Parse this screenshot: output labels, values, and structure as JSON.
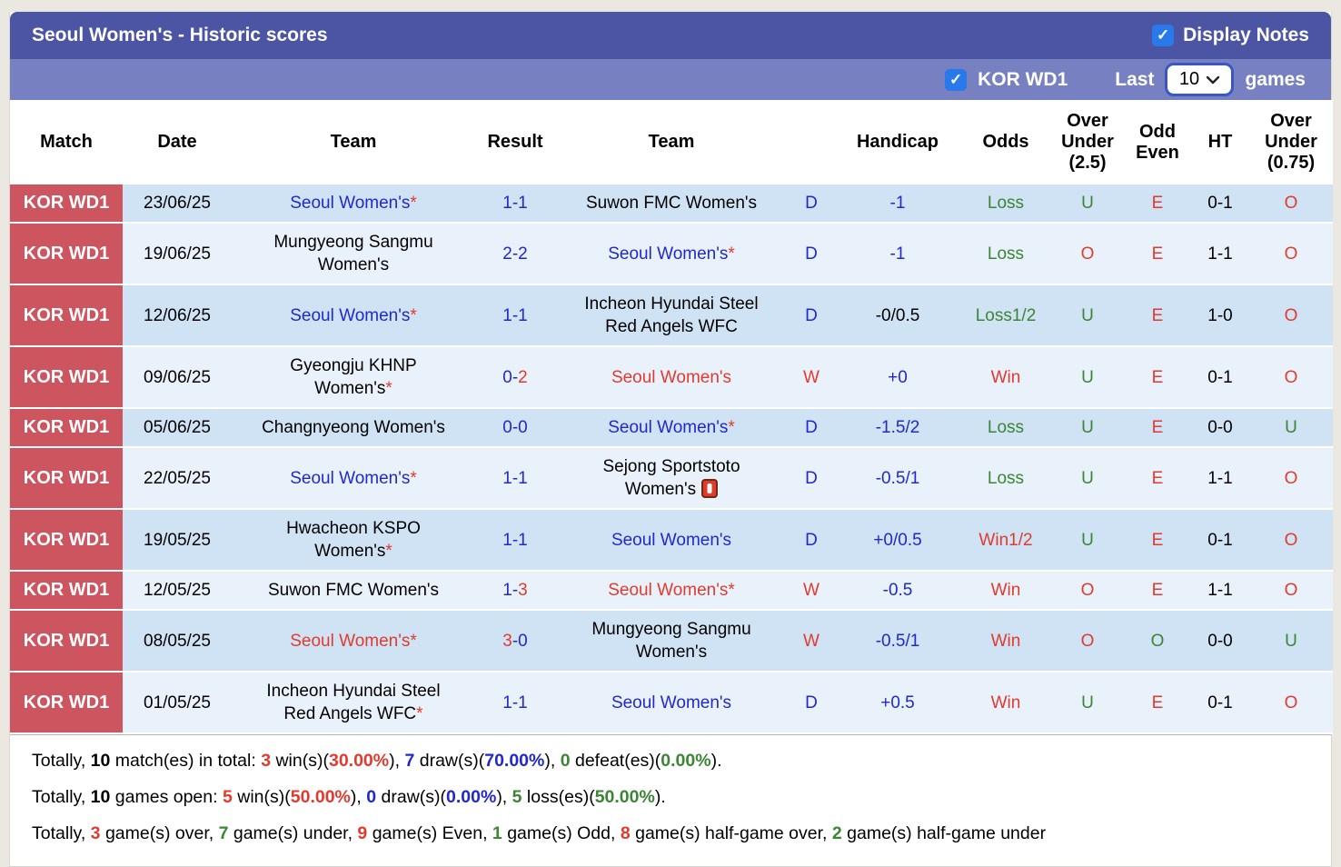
{
  "title_bar": {
    "title": "Seoul Women's - Historic scores",
    "display_notes_label": "Display Notes",
    "display_notes_checked": true
  },
  "filter_bar": {
    "league_label": "KOR WD1",
    "league_checked": true,
    "last_label": "Last",
    "games_label": "games",
    "selected_count": "10"
  },
  "icons": {
    "checkmark": "✓"
  },
  "colors": {
    "title_bar": "#4c55a4",
    "filter_bar": "#7780c0",
    "badge_red": "#cd5560",
    "row_dark": "#cfe3f4",
    "row_light": "#e9f2fa",
    "text_blue": "#2128cc",
    "text_red": "#e23a2e",
    "text_green": "#3c8534",
    "checkbox_blue": "#2979ea"
  },
  "table": {
    "headers": {
      "match": "Match",
      "date": "Date",
      "team_home": "Team",
      "result": "Result",
      "team_away": "Team",
      "outcome": "",
      "handicap": "Handicap",
      "odds": "Odds",
      "over_under_25": "Over Under (2.5)",
      "odd_even": "Odd Even",
      "ht": "HT",
      "over_under_075": "Over Under (0.75)"
    },
    "rows": [
      {
        "league": "KOR WD1",
        "date": "23/06/25",
        "home": {
          "name": "Seoul Women's",
          "color": "blue",
          "star": true
        },
        "result": [
          {
            "t": "1-1",
            "c": "blue"
          }
        ],
        "away": {
          "name": "Suwon FMC Women's",
          "color": "black",
          "star": false
        },
        "outcome": {
          "t": "D",
          "c": "blue"
        },
        "handicap": {
          "t": "-1",
          "c": "blue"
        },
        "odds": {
          "t": "Loss",
          "c": "green"
        },
        "ou25": {
          "t": "U",
          "c": "green"
        },
        "odd_even": {
          "t": "E",
          "c": "red"
        },
        "ht": "0-1",
        "ou075": {
          "t": "O",
          "c": "red"
        }
      },
      {
        "league": "KOR WD1",
        "date": "19/06/25",
        "home": {
          "name": "Mungyeong Sangmu\nWomen's",
          "color": "black",
          "star": false
        },
        "result": [
          {
            "t": "2-2",
            "c": "blue"
          }
        ],
        "away": {
          "name": "Seoul Women's",
          "color": "blue",
          "star": true
        },
        "outcome": {
          "t": "D",
          "c": "blue"
        },
        "handicap": {
          "t": "-1",
          "c": "blue"
        },
        "odds": {
          "t": "Loss",
          "c": "green"
        },
        "ou25": {
          "t": "O",
          "c": "red"
        },
        "odd_even": {
          "t": "E",
          "c": "red"
        },
        "ht": "1-1",
        "ou075": {
          "t": "O",
          "c": "red"
        }
      },
      {
        "league": "KOR WD1",
        "date": "12/06/25",
        "home": {
          "name": "Seoul Women's",
          "color": "blue",
          "star": true
        },
        "result": [
          {
            "t": "1-1",
            "c": "blue"
          }
        ],
        "away": {
          "name": "Incheon Hyundai Steel\nRed Angels WFC",
          "color": "black",
          "star": false
        },
        "outcome": {
          "t": "D",
          "c": "blue"
        },
        "handicap": {
          "t": "-0/0.5",
          "c": "black"
        },
        "odds": {
          "t": "Loss1/2",
          "c": "green"
        },
        "ou25": {
          "t": "U",
          "c": "green"
        },
        "odd_even": {
          "t": "E",
          "c": "red"
        },
        "ht": "1-0",
        "ou075": {
          "t": "O",
          "c": "red"
        }
      },
      {
        "league": "KOR WD1",
        "date": "09/06/25",
        "home": {
          "name": "Gyeongju KHNP\nWomen's",
          "color": "black",
          "star": true
        },
        "result": [
          {
            "t": "0-",
            "c": "blue"
          },
          {
            "t": "2",
            "c": "red"
          }
        ],
        "away": {
          "name": "Seoul Women's",
          "color": "red",
          "star": false
        },
        "outcome": {
          "t": "W",
          "c": "red"
        },
        "handicap": {
          "t": "+0",
          "c": "blue"
        },
        "odds": {
          "t": "Win",
          "c": "red"
        },
        "ou25": {
          "t": "U",
          "c": "green"
        },
        "odd_even": {
          "t": "E",
          "c": "red"
        },
        "ht": "0-1",
        "ou075": {
          "t": "O",
          "c": "red"
        }
      },
      {
        "league": "KOR WD1",
        "date": "05/06/25",
        "home": {
          "name": "Changnyeong Women's",
          "color": "black",
          "star": false
        },
        "result": [
          {
            "t": "0-0",
            "c": "blue"
          }
        ],
        "away": {
          "name": "Seoul Women's",
          "color": "blue",
          "star": true
        },
        "outcome": {
          "t": "D",
          "c": "blue"
        },
        "handicap": {
          "t": "-1.5/2",
          "c": "blue"
        },
        "odds": {
          "t": "Loss",
          "c": "green"
        },
        "ou25": {
          "t": "U",
          "c": "green"
        },
        "odd_even": {
          "t": "E",
          "c": "red"
        },
        "ht": "0-0",
        "ou075": {
          "t": "U",
          "c": "green"
        }
      },
      {
        "league": "KOR WD1",
        "date": "22/05/25",
        "home": {
          "name": "Seoul Women's",
          "color": "blue",
          "star": true
        },
        "result": [
          {
            "t": "1-1",
            "c": "blue"
          }
        ],
        "away": {
          "name": "Sejong Sportstoto\nWomen's",
          "color": "black",
          "star": false,
          "note": true
        },
        "outcome": {
          "t": "D",
          "c": "blue"
        },
        "handicap": {
          "t": "-0.5/1",
          "c": "blue"
        },
        "odds": {
          "t": "Loss",
          "c": "green"
        },
        "ou25": {
          "t": "U",
          "c": "green"
        },
        "odd_even": {
          "t": "E",
          "c": "red"
        },
        "ht": "1-1",
        "ou075": {
          "t": "O",
          "c": "red"
        }
      },
      {
        "league": "KOR WD1",
        "date": "19/05/25",
        "home": {
          "name": "Hwacheon KSPO\nWomen's",
          "color": "black",
          "star": true
        },
        "result": [
          {
            "t": "1-1",
            "c": "blue"
          }
        ],
        "away": {
          "name": "Seoul Women's",
          "color": "blue",
          "star": false
        },
        "outcome": {
          "t": "D",
          "c": "blue"
        },
        "handicap": {
          "t": "+0/0.5",
          "c": "blue"
        },
        "odds": {
          "t": "Win1/2",
          "c": "red"
        },
        "ou25": {
          "t": "U",
          "c": "green"
        },
        "odd_even": {
          "t": "E",
          "c": "red"
        },
        "ht": "0-1",
        "ou075": {
          "t": "O",
          "c": "red"
        }
      },
      {
        "league": "KOR WD1",
        "date": "12/05/25",
        "home": {
          "name": "Suwon FMC Women's",
          "color": "black",
          "star": false
        },
        "result": [
          {
            "t": "1-",
            "c": "blue"
          },
          {
            "t": "3",
            "c": "red"
          }
        ],
        "away": {
          "name": "Seoul Women's",
          "color": "red",
          "star": true
        },
        "outcome": {
          "t": "W",
          "c": "red"
        },
        "handicap": {
          "t": "-0.5",
          "c": "blue"
        },
        "odds": {
          "t": "Win",
          "c": "red"
        },
        "ou25": {
          "t": "O",
          "c": "red"
        },
        "odd_even": {
          "t": "E",
          "c": "red"
        },
        "ht": "1-1",
        "ou075": {
          "t": "O",
          "c": "red"
        }
      },
      {
        "league": "KOR WD1",
        "date": "08/05/25",
        "home": {
          "name": "Seoul Women's",
          "color": "red",
          "star": true
        },
        "result": [
          {
            "t": "3",
            "c": "red"
          },
          {
            "t": "-0",
            "c": "blue"
          }
        ],
        "away": {
          "name": "Mungyeong Sangmu\nWomen's",
          "color": "black",
          "star": false
        },
        "outcome": {
          "t": "W",
          "c": "red"
        },
        "handicap": {
          "t": "-0.5/1",
          "c": "blue"
        },
        "odds": {
          "t": "Win",
          "c": "red"
        },
        "ou25": {
          "t": "O",
          "c": "red"
        },
        "odd_even": {
          "t": "O",
          "c": "green"
        },
        "ht": "0-0",
        "ou075": {
          "t": "U",
          "c": "green"
        }
      },
      {
        "league": "KOR WD1",
        "date": "01/05/25",
        "home": {
          "name": "Incheon Hyundai Steel\nRed Angels WFC",
          "color": "black",
          "star": true
        },
        "result": [
          {
            "t": "1-1",
            "c": "blue"
          }
        ],
        "away": {
          "name": "Seoul Women's",
          "color": "blue",
          "star": false
        },
        "outcome": {
          "t": "D",
          "c": "blue"
        },
        "handicap": {
          "t": "+0.5",
          "c": "blue"
        },
        "odds": {
          "t": "Win",
          "c": "red"
        },
        "ou25": {
          "t": "U",
          "c": "green"
        },
        "odd_even": {
          "t": "E",
          "c": "red"
        },
        "ht": "0-1",
        "ou075": {
          "t": "O",
          "c": "red"
        }
      }
    ]
  },
  "summary": [
    [
      {
        "t": "Totally, ",
        "c": "black"
      },
      {
        "t": "10",
        "c": "black",
        "b": true
      },
      {
        "t": " match(es) in total: ",
        "c": "black"
      },
      {
        "t": "3",
        "c": "red",
        "b": true
      },
      {
        "t": " win(s)(",
        "c": "black"
      },
      {
        "t": "30.00%",
        "c": "red",
        "b": true
      },
      {
        "t": "), ",
        "c": "black"
      },
      {
        "t": "7",
        "c": "blue",
        "b": true
      },
      {
        "t": " draw(s)(",
        "c": "black"
      },
      {
        "t": "70.00%",
        "c": "blue",
        "b": true
      },
      {
        "t": "), ",
        "c": "black"
      },
      {
        "t": "0",
        "c": "green",
        "b": true
      },
      {
        "t": " defeat(es)(",
        "c": "black"
      },
      {
        "t": "0.00%",
        "c": "green",
        "b": true
      },
      {
        "t": ").",
        "c": "black"
      }
    ],
    [
      {
        "t": "Totally, ",
        "c": "black"
      },
      {
        "t": "10",
        "c": "black",
        "b": true
      },
      {
        "t": " games open: ",
        "c": "black"
      },
      {
        "t": "5",
        "c": "red",
        "b": true
      },
      {
        "t": " win(s)(",
        "c": "black"
      },
      {
        "t": "50.00%",
        "c": "red",
        "b": true
      },
      {
        "t": "), ",
        "c": "black"
      },
      {
        "t": "0",
        "c": "blue",
        "b": true
      },
      {
        "t": " draw(s)(",
        "c": "black"
      },
      {
        "t": "0.00%",
        "c": "blue",
        "b": true
      },
      {
        "t": "), ",
        "c": "black"
      },
      {
        "t": "5",
        "c": "green",
        "b": true
      },
      {
        "t": " loss(es)(",
        "c": "black"
      },
      {
        "t": "50.00%",
        "c": "green",
        "b": true
      },
      {
        "t": ").",
        "c": "black"
      }
    ],
    [
      {
        "t": "Totally, ",
        "c": "black"
      },
      {
        "t": "3",
        "c": "red",
        "b": true
      },
      {
        "t": " game(s) over, ",
        "c": "black"
      },
      {
        "t": "7",
        "c": "green",
        "b": true
      },
      {
        "t": " game(s) under, ",
        "c": "black"
      },
      {
        "t": "9",
        "c": "red",
        "b": true
      },
      {
        "t": " game(s) Even, ",
        "c": "black"
      },
      {
        "t": "1",
        "c": "green",
        "b": true
      },
      {
        "t": " game(s) Odd, ",
        "c": "black"
      },
      {
        "t": "8",
        "c": "red",
        "b": true
      },
      {
        "t": " game(s) half-game over, ",
        "c": "black"
      },
      {
        "t": "2",
        "c": "green",
        "b": true
      },
      {
        "t": " game(s) half-game under",
        "c": "black"
      }
    ]
  ]
}
